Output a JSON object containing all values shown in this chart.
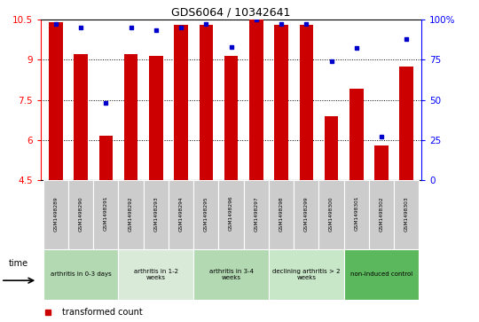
{
  "title": "GDS6064 / 10342641",
  "samples": [
    "GSM1498289",
    "GSM1498290",
    "GSM1498291",
    "GSM1498292",
    "GSM1498293",
    "GSM1498294",
    "GSM1498295",
    "GSM1498296",
    "GSM1498297",
    "GSM1498298",
    "GSM1498299",
    "GSM1498300",
    "GSM1498301",
    "GSM1498302",
    "GSM1498303"
  ],
  "transformed_count": [
    10.4,
    9.2,
    6.15,
    9.2,
    9.15,
    10.3,
    10.3,
    9.15,
    10.5,
    10.3,
    10.3,
    6.9,
    7.9,
    5.8,
    8.75
  ],
  "percentile_rank": [
    97,
    95,
    48,
    95,
    93,
    95,
    97,
    83,
    100,
    97,
    97,
    74,
    82,
    27,
    88
  ],
  "groups": [
    {
      "label": "arthritis in 0-3 days",
      "start": 0,
      "end": 3,
      "color": "#b2d9b2"
    },
    {
      "label": "arthritis in 1-2\nweeks",
      "start": 3,
      "end": 6,
      "color": "#d9ead9"
    },
    {
      "label": "arthritis in 3-4\nweeks",
      "start": 6,
      "end": 9,
      "color": "#b2d9b2"
    },
    {
      "label": "declining arthritis > 2\nweeks",
      "start": 9,
      "end": 12,
      "color": "#c8e6c8"
    },
    {
      "label": "non-induced control",
      "start": 12,
      "end": 15,
      "color": "#5cb85c"
    }
  ],
  "ylim_left": [
    4.5,
    10.5
  ],
  "ylim_right": [
    0,
    100
  ],
  "bar_color": "#cc0000",
  "dot_color": "#0000cc",
  "left_yticks": [
    4.5,
    6.0,
    7.5,
    9.0,
    10.5
  ],
  "right_yticks": [
    0,
    25,
    50,
    75,
    100
  ],
  "right_yticklabels": [
    "0",
    "25",
    "50",
    "75",
    "100%"
  ]
}
